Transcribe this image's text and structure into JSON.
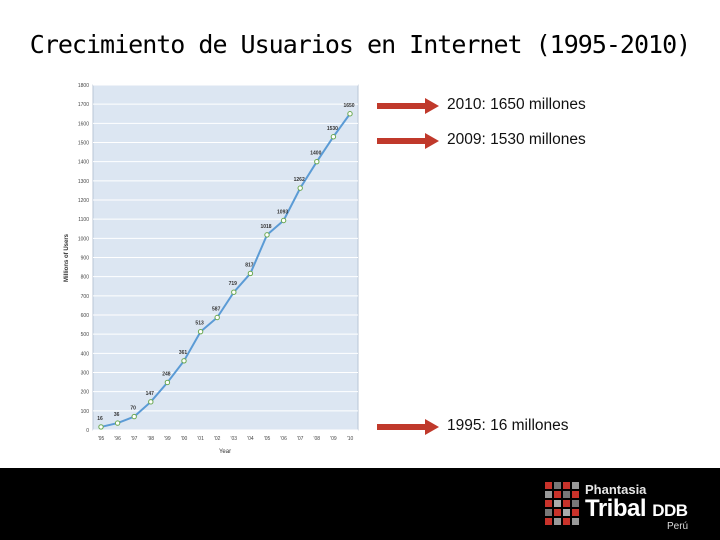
{
  "slide": {
    "title": "Crecimiento de Usuarios en Internet (1995-2010)"
  },
  "annotations": [
    {
      "text": "2010: 1650 millones"
    },
    {
      "text": "2009: 1530 millones"
    },
    {
      "text": "1995: 16 millones"
    }
  ],
  "logo": {
    "line1": "Phantasia",
    "line2_a": "Tribal",
    "line2_b": "DDB",
    "line3": "Perú"
  },
  "colors": {
    "plot_bg": "#dce6f2",
    "line": "#5b9bd5",
    "marker_face": "#ffffff",
    "marker_edge": "#6aa84f",
    "arrow": "#c0392b",
    "footer": "#000000"
  },
  "chart_data": {
    "type": "line",
    "title": "",
    "xlabel": "Year",
    "ylabel": "Millions of Users",
    "x": [
      "'95",
      "'96",
      "'97",
      "'98",
      "'99",
      "'00",
      "'01",
      "'02",
      "'03",
      "'04",
      "'05",
      "'06",
      "'07",
      "'08",
      "'09",
      "'10"
    ],
    "series": [
      {
        "values": [
          16,
          36,
          70,
          147,
          248,
          361,
          513,
          587,
          719,
          817,
          1018,
          1093,
          1262,
          1400,
          1530,
          1650
        ]
      }
    ],
    "data_labels": [
      "16",
      "36",
      "70",
      "147",
      "248",
      "361",
      "513",
      "587",
      "719",
      "817",
      "1018",
      "1093",
      "1262",
      "1400",
      "1530",
      "1650"
    ],
    "ylim": [
      0,
      1800
    ],
    "yticks": [
      "0",
      "100",
      "200",
      "300",
      "400",
      "500",
      "600",
      "700",
      "800",
      "900",
      "1000",
      "1100",
      "1200",
      "1300",
      "1400",
      "1500",
      "1600",
      "1700",
      "1800"
    ],
    "grid": true,
    "legend": "none"
  }
}
